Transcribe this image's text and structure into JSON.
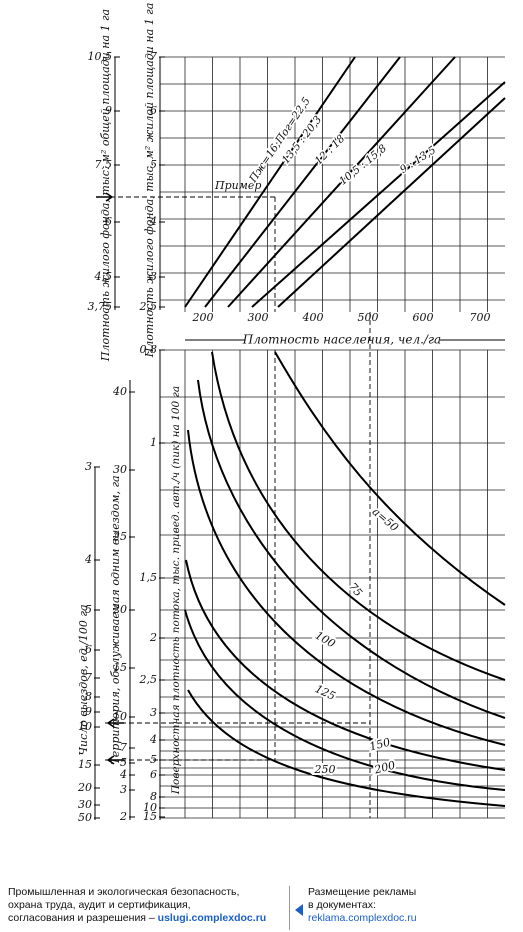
{
  "top_chart": {
    "y_title_outer": "Плотность жилого фонда, тыс. м² общей площади на 1 га",
    "y_title_inner": "Плотность жилого фонда, тыс. м² жилой площади на 1 га",
    "y_ticks_outer": [
      "10,5",
      "9",
      "7,5",
      "6",
      "4,5",
      "3,75"
    ],
    "y_ticks_inner": [
      "7",
      "6",
      "5",
      "4",
      "3",
      "2,5"
    ],
    "x_ticks": [
      "200",
      "300",
      "400",
      "500",
      "600",
      "700"
    ],
    "x_title": "Плотность населения, чел./га",
    "example_label": "Пример",
    "line_labels": [
      "Пж=16;Пог=22,5",
      "13,5 : 20,3",
      "12 : 18",
      "10,5 : 15,8",
      "9 : 13,5"
    ]
  },
  "bottom_chart": {
    "y_title_outer": "Число выездов, ед./100 га",
    "y_title_middle": "Территория, обслуживаемая одним выездом, га",
    "y_title_inner": "Поверхностная плотность потока, тыс. привед. авт./ч (пик) на 100 га",
    "y_ticks_outer": [
      "3",
      "4",
      "5",
      "6",
      "7",
      "8",
      "9",
      "10",
      "15",
      "20",
      "30",
      "50"
    ],
    "y_ticks_middle": [
      "40",
      "30",
      "25",
      "20",
      "15",
      "10",
      "7",
      "5",
      "4",
      "3",
      "2"
    ],
    "y_ticks_inner": [
      "0,8",
      "1",
      "1,5",
      "2",
      "2,5",
      "3",
      "4",
      "5",
      "6",
      "8",
      "10",
      "15"
    ],
    "curve_labels": [
      "а=50",
      "75",
      "100",
      "125",
      "150",
      "200",
      "250"
    ]
  },
  "footer": {
    "left_lines": [
      "Промышленная и экологическая безопасность,",
      "охрана труда, аудит и сертификация,",
      "согласования и разрешения – "
    ],
    "left_link": "uslugi.complexdoc.ru",
    "right_lines": [
      "Размещение рекламы",
      "в документах:"
    ],
    "right_link": "reklama.complexdoc.ru"
  }
}
